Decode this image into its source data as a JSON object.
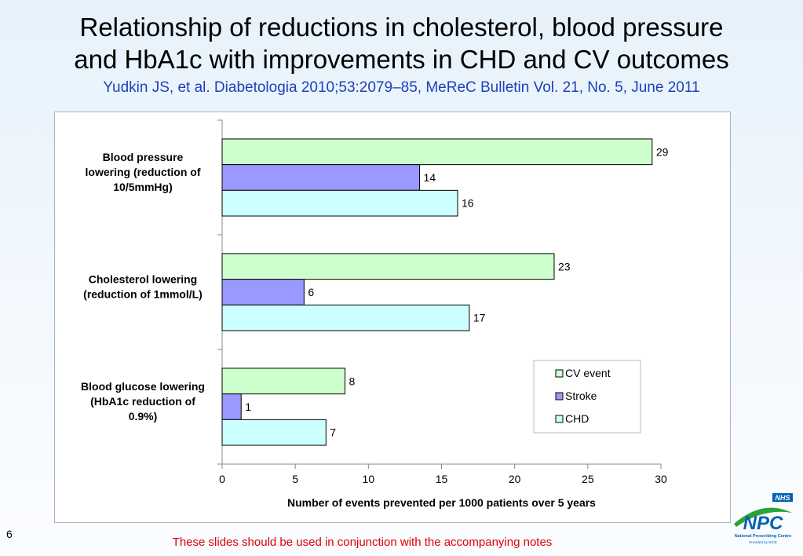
{
  "slide": {
    "title_lines": [
      "Relationship of reductions in cholesterol, blood pressure",
      "and HbA1c with improvements in CHD and CV outcomes"
    ],
    "subtitle": "Yudkin JS, et al. Diabetologia 2010;53:2079–85, MeReC Bulletin Vol. 21, No. 5, June 2011",
    "page_number": "6",
    "footer_note": "These slides should be used in conjunction with the accompanying notes"
  },
  "logo": {
    "nhs": "NHS",
    "npc": "NPC",
    "org": "National Prescribing Centre",
    "provided": "Provided by NICE"
  },
  "chart_data": {
    "type": "bar",
    "orientation": "horizontal",
    "title": "",
    "xlabel": "Number of events prevented per 1000 patients over 5 years",
    "ylabel": "",
    "categories": [
      "Blood pressure lowering (reduction of 10/5mmHg)",
      "Cholesterol lowering (reduction of 1mmol/L)",
      "Blood glucose lowering (HbA1c reduction of 0.9%)"
    ],
    "category_label_lines": [
      [
        "Blood pressure",
        "lowering (reduction of",
        "10/5mmHg)"
      ],
      [
        "Cholesterol lowering",
        "(reduction of 1mmol/L)"
      ],
      [
        "Blood glucose lowering",
        "(HbA1c reduction of",
        "0.9%)"
      ]
    ],
    "series": [
      {
        "name": "CV event",
        "values": [
          29,
          23,
          8
        ],
        "plot_values": [
          29.4,
          22.7,
          8.4
        ],
        "color": "#ccffcc"
      },
      {
        "name": "Stroke",
        "values": [
          14,
          6,
          1
        ],
        "plot_values": [
          13.5,
          5.6,
          1.3
        ],
        "color": "#9999ff"
      },
      {
        "name": "CHD",
        "values": [
          16,
          17,
          7
        ],
        "plot_values": [
          16.1,
          16.9,
          7.1
        ],
        "color": "#ccffff"
      }
    ],
    "xlim": [
      0,
      30
    ],
    "xticks": [
      0,
      5,
      10,
      15,
      20,
      25,
      30
    ],
    "grid": false,
    "legend": "bottom-right",
    "bar_outline_color": "#000000"
  }
}
